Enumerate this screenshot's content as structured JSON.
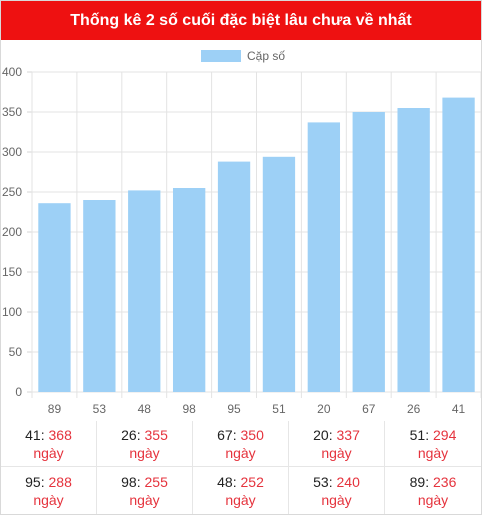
{
  "header": {
    "title": "Thống kê 2 số cuối đặc biệt lâu chưa về nhất"
  },
  "colors": {
    "header_bg": "#ee1111",
    "bar": "#9dd0f6",
    "value": "#e5333d"
  },
  "chart_data": {
    "type": "bar",
    "categories": [
      "89",
      "53",
      "48",
      "98",
      "95",
      "51",
      "20",
      "67",
      "26",
      "41"
    ],
    "series": [
      {
        "name": "Cặp số",
        "values": [
          236,
          240,
          252,
          255,
          288,
          294,
          337,
          350,
          355,
          368
        ]
      }
    ],
    "ylim": [
      0,
      400
    ],
    "yticks": [
      0,
      50,
      100,
      150,
      200,
      250,
      300,
      350,
      400
    ],
    "legend_position": "top-center",
    "grid": true
  },
  "stats": [
    {
      "number": "41",
      "days": "368",
      "unit": "ngày"
    },
    {
      "number": "26",
      "days": "355",
      "unit": "ngày"
    },
    {
      "number": "67",
      "days": "350",
      "unit": "ngày"
    },
    {
      "number": "20",
      "days": "337",
      "unit": "ngày"
    },
    {
      "number": "51",
      "days": "294",
      "unit": "ngày"
    },
    {
      "number": "95",
      "days": "288",
      "unit": "ngày"
    },
    {
      "number": "98",
      "days": "255",
      "unit": "ngày"
    },
    {
      "number": "48",
      "days": "252",
      "unit": "ngày"
    },
    {
      "number": "53",
      "days": "240",
      "unit": "ngày"
    },
    {
      "number": "89",
      "days": "236",
      "unit": "ngày"
    }
  ]
}
